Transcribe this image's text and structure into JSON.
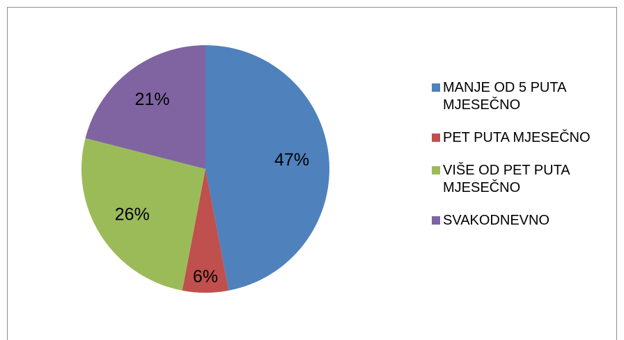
{
  "chart_data": {
    "type": "pie",
    "categories": [
      "MANJE OD 5 PUTA MJESEČNO",
      "PET PUTA MJESEČNO",
      "VIŠE OD PET PUTA MJESEČNO",
      "SVAKODNEVNO"
    ],
    "values": [
      47,
      6,
      26,
      21
    ],
    "value_labels": [
      "47%",
      "6%",
      "26%",
      "21%"
    ],
    "colors": [
      "#4f81bd",
      "#c0504d",
      "#9bbb59",
      "#8064a2"
    ],
    "legend": "right"
  }
}
